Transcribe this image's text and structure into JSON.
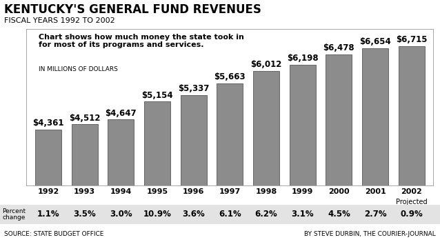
{
  "chart_data": {
    "type": "bar",
    "title": "KENTUCKY'S GENERAL FUND REVENUES",
    "subtitle": "FISCAL YEARS 1992 TO 2002",
    "note": "Chart shows how much money the state took in for most of its programs and services.",
    "y_label": "IN MILLIONS OF DOLLARS",
    "categories": [
      "1992",
      "1993",
      "1994",
      "1995",
      "1996",
      "1997",
      "1998",
      "1999",
      "2000",
      "2001",
      "2002"
    ],
    "values": [
      4361,
      4512,
      4647,
      5154,
      5337,
      5663,
      6012,
      6198,
      6478,
      6654,
      6715
    ],
    "value_labels": [
      "$4,361",
      "$4,512",
      "$4,647",
      "$5,154",
      "$5,337",
      "$5,663",
      "$6,012",
      "$6,198",
      "$6,478",
      "$6,654",
      "$6,715"
    ],
    "data_labels": true,
    "color": "#8c8c8c",
    "ylim": [
      2800,
      7200
    ],
    "yticks": [],
    "tick_labels": "x",
    "grid": false,
    "category_notes": [
      {
        "category": "2002",
        "text": "Projected"
      }
    ],
    "percent_change": {
      "label": "Percent\nchange",
      "values": [
        1.1,
        3.5,
        3.0,
        10.9,
        3.6,
        6.1,
        6.2,
        3.1,
        4.5,
        2.7,
        0.9
      ],
      "value_labels": [
        "1.1%",
        "3.5%",
        "3.0%",
        "10.9%",
        "3.6%",
        "6.1%",
        "6.2%",
        "3.1%",
        "4.5%",
        "2.7%",
        "0.9%"
      ]
    },
    "source": "SOURCE: STATE BUDGET OFFICE",
    "credit": "BY STEVE DURBIN, THE COURIER-JOURNAL"
  }
}
